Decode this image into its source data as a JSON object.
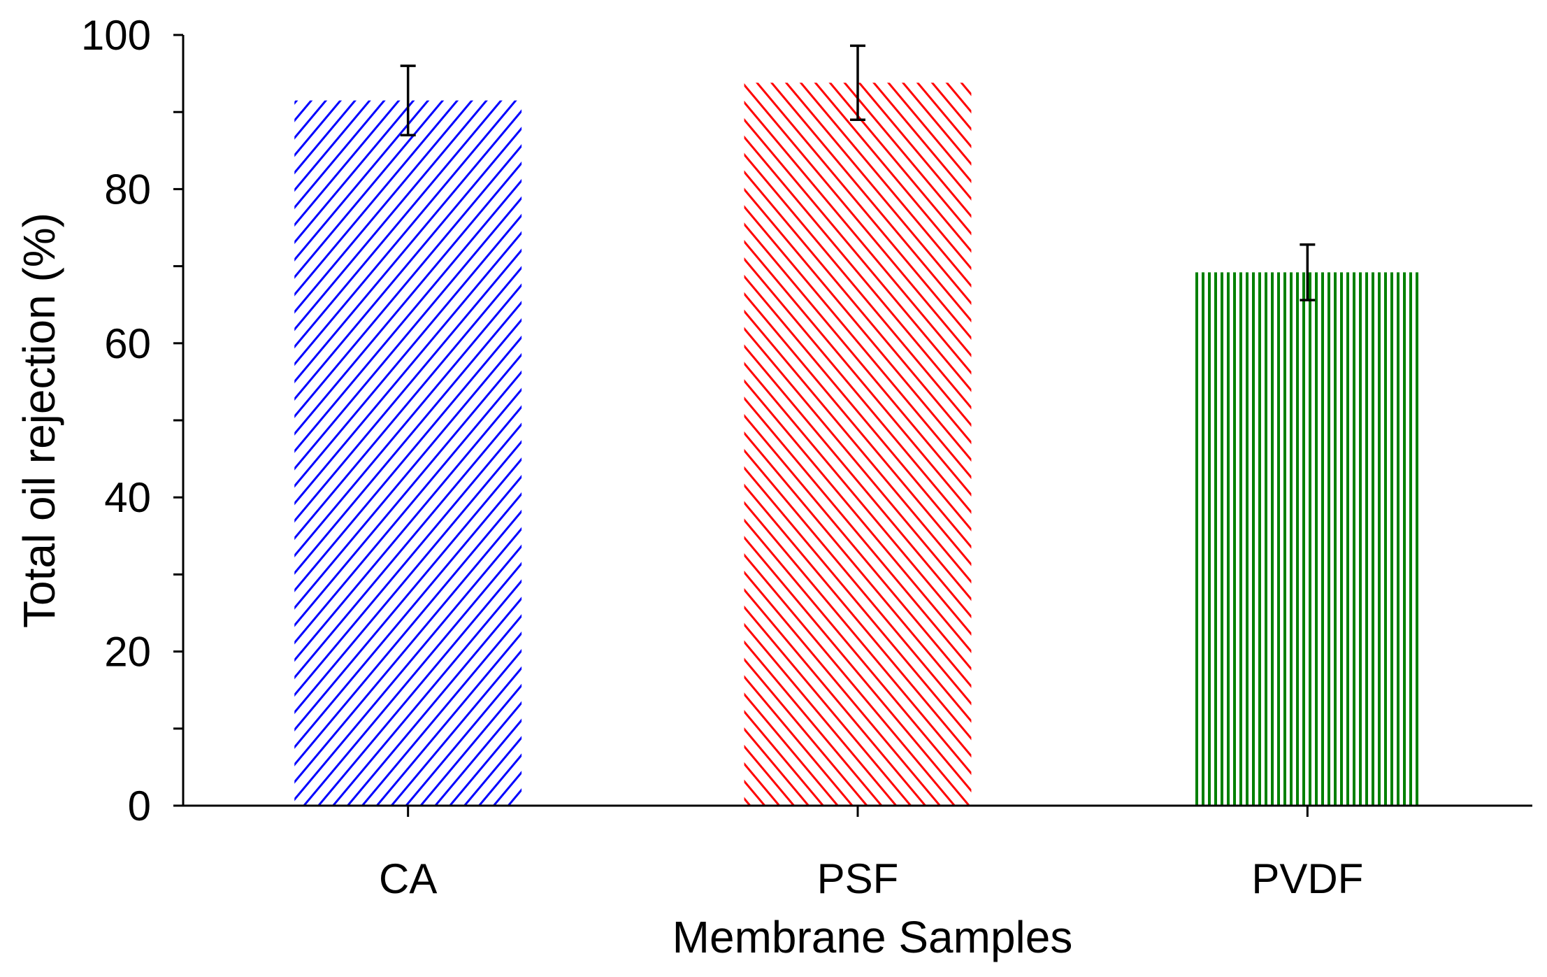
{
  "chart_data": {
    "type": "bar",
    "title": "",
    "xlabel": "Membrane Samples",
    "ylabel": "Total oil rejection (%)",
    "ylim": [
      0,
      100
    ],
    "yticks": [
      0,
      20,
      40,
      60,
      80,
      100
    ],
    "y_minor_step": 10,
    "grid": false,
    "legend": "none",
    "categories": [
      "CA",
      "PSF",
      "PVDF"
    ],
    "values": [
      91.5,
      93.8,
      69.2
    ],
    "errors": [
      4.5,
      4.8,
      3.6
    ],
    "colors": [
      "#0000ff",
      "#ff0000",
      "#008000"
    ],
    "patterns": [
      "diagonal-down",
      "diagonal-up",
      "vertical"
    ]
  }
}
